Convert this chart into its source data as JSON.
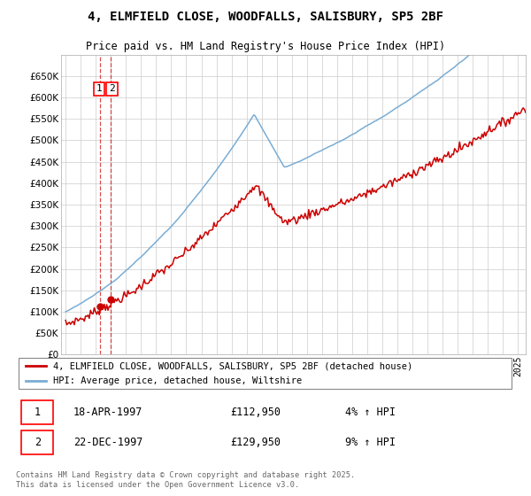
{
  "title": "4, ELMFIELD CLOSE, WOODFALLS, SALISBURY, SP5 2BF",
  "subtitle": "Price paid vs. HM Land Registry's House Price Index (HPI)",
  "ylim": [
    0,
    700000
  ],
  "yticks": [
    0,
    50000,
    100000,
    150000,
    200000,
    250000,
    300000,
    350000,
    400000,
    450000,
    500000,
    550000,
    600000,
    650000
  ],
  "xlim_start": 1994.7,
  "xlim_end": 2025.5,
  "legend_line1": "4, ELMFIELD CLOSE, WOODFALLS, SALISBURY, SP5 2BF (detached house)",
  "legend_line2": "HPI: Average price, detached house, Wiltshire",
  "transaction1_date": "18-APR-1997",
  "transaction1_price": "£112,950",
  "transaction1_pct": "4% ↑ HPI",
  "transaction2_date": "22-DEC-1997",
  "transaction2_price": "£129,950",
  "transaction2_pct": "9% ↑ HPI",
  "footer": "Contains HM Land Registry data © Crown copyright and database right 2025.\nThis data is licensed under the Open Government Licence v3.0.",
  "line1_color": "#cc0000",
  "line2_color": "#7aadd4",
  "vline_color": "#cc0000",
  "grid_color": "#cccccc",
  "background_color": "#ffffff",
  "transaction1_x": 1997.29,
  "transaction2_x": 1997.97,
  "transaction1_y": 112950,
  "transaction2_y": 129950
}
